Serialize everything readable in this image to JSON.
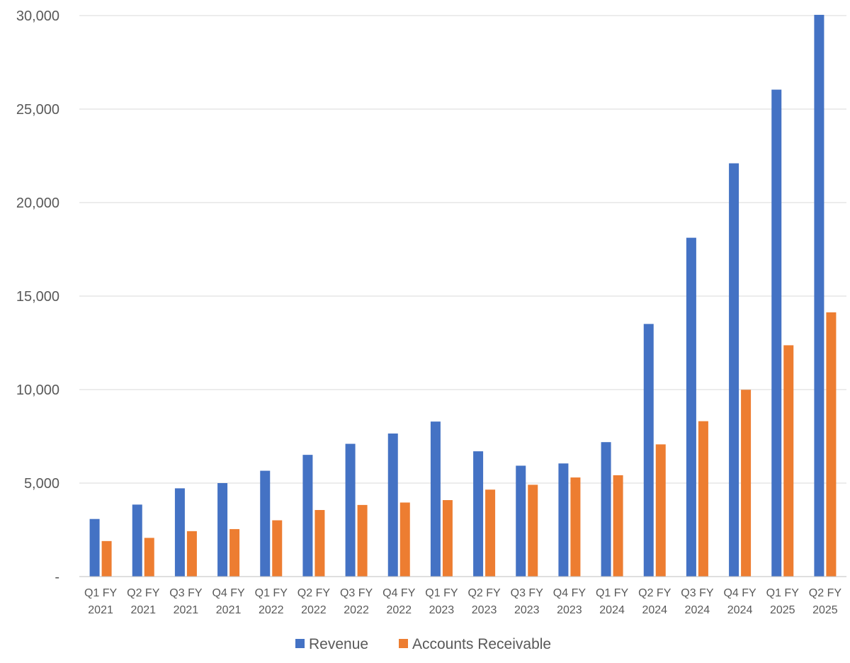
{
  "chart_data": {
    "type": "bar",
    "categories": [
      [
        "Q1 FY",
        "2021"
      ],
      [
        "Q2 FY",
        "2021"
      ],
      [
        "Q3 FY",
        "2021"
      ],
      [
        "Q4 FY",
        "2021"
      ],
      [
        "Q1 FY",
        "2022"
      ],
      [
        "Q2 FY",
        "2022"
      ],
      [
        "Q3 FY",
        "2022"
      ],
      [
        "Q4 FY",
        "2022"
      ],
      [
        "Q1 FY",
        "2023"
      ],
      [
        "Q2 FY",
        "2023"
      ],
      [
        "Q3 FY",
        "2023"
      ],
      [
        "Q4 FY",
        "2023"
      ],
      [
        "Q1 FY",
        "2024"
      ],
      [
        "Q2 FY",
        "2024"
      ],
      [
        "Q3 FY",
        "2024"
      ],
      [
        "Q4 FY",
        "2024"
      ],
      [
        "Q1 FY",
        "2025"
      ],
      [
        "Q2 FY",
        "2025"
      ]
    ],
    "series": [
      {
        "name": "Revenue",
        "color": "#4472c4",
        "values": [
          3080,
          3850,
          4720,
          5000,
          5660,
          6510,
          7100,
          7650,
          8290,
          6700,
          5930,
          6050,
          7190,
          13510,
          18120,
          22100,
          26040,
          30040
        ]
      },
      {
        "name": "Accounts Receivable",
        "color": "#ed7d31",
        "values": [
          1900,
          2070,
          2430,
          2540,
          3010,
          3560,
          3830,
          3960,
          4090,
          4650,
          4910,
          5300,
          5420,
          7070,
          8310,
          9990,
          12370,
          14130
        ]
      }
    ],
    "yticks": [
      "-",
      "5,000",
      "10,000",
      "15,000",
      "20,000",
      "25,000",
      "30,000"
    ],
    "ytick_values": [
      0,
      5000,
      10000,
      15000,
      20000,
      25000,
      30000
    ],
    "ylim": [
      0,
      30000
    ],
    "grid": true,
    "legend_position": "bottom",
    "title": "",
    "xlabel": "",
    "ylabel": ""
  }
}
